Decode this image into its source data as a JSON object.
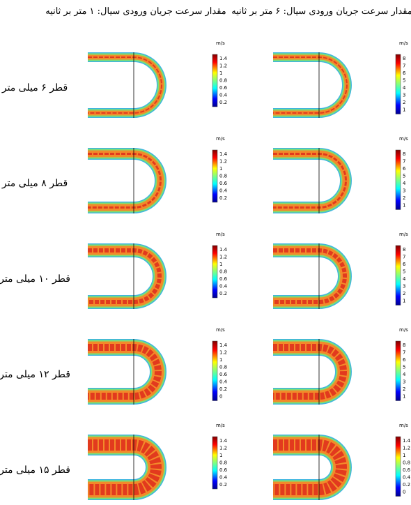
{
  "columns": [
    "مقدار سرعت جریان ورودی سیال: ۱ متر بر ثانیه",
    "مقدار سرعت جریان ورودی سیال: ۶ متر بر ثانیه"
  ],
  "rows": [
    {
      "label": "قطر ۶ میلی متر",
      "panels": [
        {
          "unit": "m/s",
          "ticks": [
            1.4,
            1.2,
            1,
            0.8,
            0.6,
            0.4,
            0.2
          ]
        },
        {
          "unit": "m/s",
          "ticks": [
            8,
            7,
            6,
            5,
            4,
            3,
            2,
            1
          ]
        }
      ]
    },
    {
      "label": "قطر ۸ میلی متر",
      "panels": [
        {
          "unit": "m/s",
          "ticks": [
            1.4,
            1.2,
            1,
            0.8,
            0.6,
            0.4,
            0.2
          ]
        },
        {
          "unit": "m/s",
          "ticks": [
            8,
            7,
            6,
            5,
            4,
            3,
            2,
            1
          ]
        }
      ]
    },
    {
      "label": "قطر ۱۰ میلی متر",
      "panels": [
        {
          "unit": "m/s",
          "ticks": [
            1.4,
            1.2,
            1,
            0.8,
            0.6,
            0.4,
            0.2
          ]
        },
        {
          "unit": "m/s",
          "ticks": [
            8,
            7,
            6,
            5,
            4,
            3,
            2,
            1
          ]
        }
      ]
    },
    {
      "label": "قطر ۱۲ میلی متر",
      "panels": [
        {
          "unit": "m/s",
          "ticks": [
            1.4,
            1.2,
            1,
            0.8,
            0.6,
            0.4,
            0.2,
            0
          ]
        },
        {
          "unit": "m/s",
          "ticks": [
            8,
            7,
            6,
            5,
            4,
            3,
            2,
            1
          ]
        }
      ]
    },
    {
      "label": "قطر ۱۵ میلی متر",
      "panels": [
        {
          "unit": "m/s",
          "ticks": [
            1.4,
            1.2,
            1,
            0.8,
            0.6,
            0.4,
            0.2
          ]
        },
        {
          "unit": "m/s",
          "ticks": [
            1.4,
            1.2,
            1,
            0.8,
            0.6,
            0.4,
            0.2,
            0
          ]
        }
      ]
    }
  ]
}
